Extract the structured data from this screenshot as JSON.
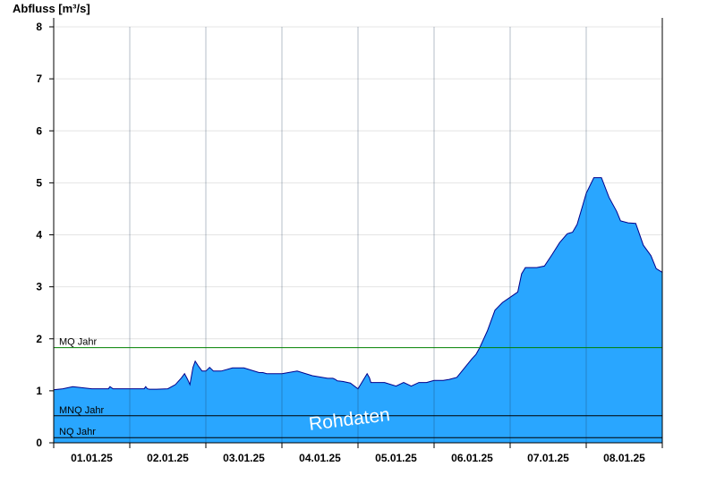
{
  "chart_data": {
    "type": "area",
    "ylabel": "Abfluss [m³/s]",
    "xlabel": "",
    "ylim": [
      0,
      8
    ],
    "yticks": [
      0,
      1,
      2,
      3,
      4,
      5,
      6,
      7,
      8
    ],
    "x_tick_labels": [
      "01.01.25",
      "02.01.25",
      "03.01.25",
      "04.01.25",
      "05.01.25",
      "06.01.25",
      "07.01.25",
      "08.01.25"
    ],
    "x_range_days": [
      0,
      8
    ],
    "grid": "horizontal",
    "fill_color": "#29a6ff",
    "line_color": "#00008b",
    "watermark": "Rohdaten",
    "reference_lines": [
      {
        "label": "MQ Jahr",
        "value": 1.83,
        "color": "#008000"
      },
      {
        "label": "MNQ Jahr",
        "value": 0.52,
        "color": "#000000"
      },
      {
        "label": "NQ Jahr",
        "value": 0.1,
        "color": "#000000"
      }
    ],
    "series": [
      {
        "x": [
          0.0,
          0.12,
          0.25,
          0.5,
          0.72,
          0.74,
          0.78,
          0.82,
          0.9,
          1.0,
          1.19,
          1.21,
          1.23,
          1.26,
          1.35,
          1.5,
          1.6,
          1.68,
          1.72,
          1.76,
          1.79,
          1.83,
          1.86,
          1.9,
          1.95,
          2.0,
          2.05,
          2.1,
          2.2,
          2.35,
          2.5,
          2.7,
          2.75,
          2.8,
          3.0,
          3.2,
          3.4,
          3.6,
          3.67,
          3.7,
          3.73,
          3.8,
          3.9,
          4.0,
          4.12,
          4.15,
          4.17,
          4.2,
          4.25,
          4.35,
          4.5,
          4.6,
          4.7,
          4.8,
          4.85,
          4.9,
          5.0,
          5.08,
          5.12,
          5.2,
          5.3,
          5.4,
          5.5,
          5.55,
          5.6,
          5.7,
          5.8,
          5.9,
          6.0,
          6.1,
          6.15,
          6.2,
          6.35,
          6.45,
          6.55,
          6.65,
          6.75,
          6.82,
          6.88,
          6.95,
          7.0,
          7.1,
          7.2,
          7.3,
          7.4,
          7.45,
          7.55,
          7.65,
          7.75,
          7.85,
          7.92,
          8.0
        ],
        "y": [
          1.02,
          1.04,
          1.08,
          1.04,
          1.04,
          1.08,
          1.04,
          1.04,
          1.04,
          1.04,
          1.04,
          1.08,
          1.04,
          1.03,
          1.03,
          1.04,
          1.12,
          1.25,
          1.33,
          1.22,
          1.12,
          1.45,
          1.57,
          1.48,
          1.38,
          1.38,
          1.45,
          1.38,
          1.38,
          1.44,
          1.44,
          1.35,
          1.35,
          1.33,
          1.33,
          1.38,
          1.29,
          1.24,
          1.24,
          1.22,
          1.19,
          1.18,
          1.15,
          1.04,
          1.33,
          1.25,
          1.16,
          1.16,
          1.16,
          1.16,
          1.09,
          1.16,
          1.09,
          1.16,
          1.16,
          1.16,
          1.2,
          1.2,
          1.2,
          1.22,
          1.26,
          1.44,
          1.62,
          1.7,
          1.83,
          2.15,
          2.55,
          2.7,
          2.8,
          2.9,
          3.25,
          3.37,
          3.37,
          3.4,
          3.62,
          3.85,
          4.02,
          4.05,
          4.2,
          4.55,
          4.8,
          5.1,
          5.1,
          4.72,
          4.45,
          4.27,
          4.23,
          4.22,
          3.8,
          3.6,
          3.35,
          3.28
        ]
      }
    ]
  }
}
